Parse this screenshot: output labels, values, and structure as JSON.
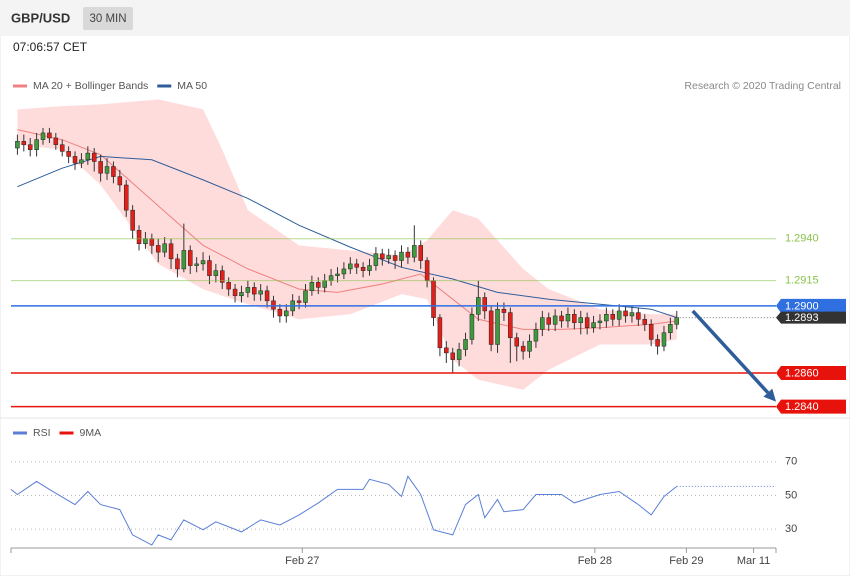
{
  "header": {
    "symbol": "GBP/USD",
    "interval": "30 MIN",
    "time": "07:06:57 CET",
    "source": "Research © 2020 Trading Central"
  },
  "chart_data": [
    {
      "type": "candlestick",
      "xlim": [
        -1,
        118.5
      ],
      "ylim": [
        1.2835,
        1.3025
      ],
      "up_color": "#3f9a3f",
      "down_color": "#e0201b",
      "x": [
        0,
        1,
        2,
        3,
        4,
        5,
        6,
        7,
        8,
        9,
        10,
        11,
        12,
        13,
        14,
        15,
        16,
        17,
        18,
        19,
        20,
        21,
        22,
        23,
        24,
        25,
        26,
        27,
        28,
        29,
        30,
        31,
        32,
        33,
        34,
        35,
        36,
        37,
        38,
        39,
        40,
        41,
        42,
        43,
        44,
        45,
        46,
        47,
        48,
        49,
        50,
        51,
        52,
        53,
        54,
        55,
        56,
        57,
        58,
        59,
        60,
        61,
        62,
        63,
        64,
        65,
        66,
        67,
        68,
        69,
        70,
        71,
        72,
        73,
        74,
        75,
        76,
        77,
        78,
        79,
        80,
        81,
        82,
        83,
        84,
        85,
        86,
        87,
        88,
        89,
        90,
        91,
        92,
        93,
        94,
        95,
        96,
        97,
        98,
        99,
        100,
        101,
        102,
        103
      ],
      "open": [
        1.2994,
        1.2998,
        1.2996,
        1.2993,
        1.2999,
        1.3003,
        1.3,
        1.2996,
        1.2992,
        1.2989,
        1.2985,
        1.2987,
        1.2991,
        1.2986,
        1.2979,
        1.2983,
        1.2977,
        1.2972,
        1.2957,
        1.2945,
        1.2937,
        1.294,
        1.2936,
        1.2932,
        1.2937,
        1.2928,
        1.2922,
        1.2933,
        1.2924,
        1.2925,
        1.2927,
        1.2918,
        1.2921,
        1.2914,
        1.291,
        1.2906,
        1.2908,
        1.2911,
        1.2907,
        1.2909,
        1.2903,
        1.2898,
        1.2894,
        1.2897,
        1.2903,
        1.2902,
        1.2909,
        1.2914,
        1.2911,
        1.2915,
        1.2918,
        1.2919,
        1.2922,
        1.2925,
        1.2923,
        1.2921,
        1.2924,
        1.2931,
        1.2928,
        1.293,
        1.2927,
        1.2932,
        1.2929,
        1.2936,
        1.2927,
        1.2915,
        1.2893,
        1.2875,
        1.2872,
        1.2868,
        1.2874,
        1.288,
        1.2895,
        1.2905,
        1.2897,
        1.2877,
        1.2898,
        1.2896,
        1.2881,
        1.2876,
        1.2873,
        1.2879,
        1.2886,
        1.2893,
        1.2889,
        1.2894,
        1.2891,
        1.2895,
        1.289,
        1.2893,
        1.2887,
        1.289,
        1.2891,
        1.2895,
        1.2892,
        1.2897,
        1.2894,
        1.2896,
        1.2892,
        1.2889,
        1.288,
        1.2876,
        1.2884,
        1.2889
      ],
      "high": [
        1.3002,
        1.3002,
        1.3,
        1.3003,
        1.3006,
        1.3006,
        1.3003,
        1.2999,
        1.2995,
        1.2992,
        1.2991,
        1.2995,
        1.2994,
        1.299,
        1.2988,
        1.2986,
        1.2981,
        1.2975,
        1.296,
        1.2948,
        1.2944,
        1.2943,
        1.294,
        1.2941,
        1.294,
        1.2931,
        1.2949,
        1.2936,
        1.2929,
        1.2932,
        1.293,
        1.2925,
        1.2924,
        1.2917,
        1.2913,
        1.2912,
        1.2915,
        1.2914,
        1.2913,
        1.2912,
        1.2906,
        1.2901,
        1.2901,
        1.2907,
        1.2906,
        1.2913,
        1.2918,
        1.2917,
        1.2919,
        1.2922,
        1.2923,
        1.2926,
        1.2929,
        1.2928,
        1.2926,
        1.2928,
        1.2935,
        1.2934,
        1.2934,
        1.2933,
        1.2936,
        1.2935,
        1.2948,
        1.2939,
        1.2929,
        1.2917,
        1.2895,
        1.2879,
        1.2875,
        1.2878,
        1.2884,
        1.2899,
        1.2915,
        1.2908,
        1.29,
        1.2902,
        1.2902,
        1.2899,
        1.2884,
        1.2879,
        1.2883,
        1.289,
        1.2897,
        1.2896,
        1.2898,
        1.2897,
        1.2899,
        1.2898,
        1.2897,
        1.2896,
        1.2894,
        1.2895,
        1.2899,
        1.2898,
        1.2901,
        1.29,
        1.29,
        1.2899,
        1.2895,
        1.2892,
        1.2883,
        1.2888,
        1.2893,
        1.2897
      ],
      "low": [
        1.299,
        1.2992,
        1.2989,
        1.2989,
        1.2996,
        1.2997,
        1.2993,
        1.2989,
        1.2985,
        1.2981,
        1.2982,
        1.2984,
        1.298,
        1.2974,
        1.2975,
        1.2973,
        1.2968,
        1.2953,
        1.294,
        1.2933,
        1.2934,
        1.2931,
        1.2926,
        1.2929,
        1.2922,
        1.2917,
        1.292,
        1.2919,
        1.292,
        1.2921,
        1.2913,
        1.2914,
        1.291,
        1.2906,
        1.2902,
        1.2902,
        1.2905,
        1.2903,
        1.2903,
        1.2899,
        1.2893,
        1.289,
        1.289,
        1.2894,
        1.2898,
        1.2899,
        1.2906,
        1.2907,
        1.2908,
        1.2912,
        1.2914,
        1.2916,
        1.2919,
        1.2919,
        1.2917,
        1.2918,
        1.2921,
        1.2924,
        1.2925,
        1.2922,
        1.2923,
        1.2925,
        1.2926,
        1.2922,
        1.2911,
        1.2888,
        1.287,
        1.2866,
        1.286,
        1.2864,
        1.287,
        1.2877,
        1.2891,
        1.2892,
        1.2873,
        1.2872,
        1.2891,
        1.2866,
        1.2867,
        1.2868,
        1.2869,
        1.2875,
        1.2882,
        1.2885,
        1.2885,
        1.2887,
        1.2887,
        1.2886,
        1.2883,
        1.2883,
        1.2884,
        1.2886,
        1.2887,
        1.2888,
        1.2888,
        1.289,
        1.289,
        1.2888,
        1.2885,
        1.2876,
        1.2871,
        1.2873,
        1.288,
        1.2886
      ],
      "close": [
        1.2998,
        1.2996,
        1.2993,
        1.2999,
        1.3003,
        1.3,
        1.2996,
        1.2992,
        1.2989,
        1.2985,
        1.2987,
        1.2991,
        1.2986,
        1.2979,
        1.2983,
        1.2977,
        1.2972,
        1.2957,
        1.2945,
        1.2937,
        1.294,
        1.2936,
        1.2932,
        1.2937,
        1.2928,
        1.2922,
        1.2933,
        1.2924,
        1.2925,
        1.2927,
        1.2918,
        1.2921,
        1.2914,
        1.291,
        1.2906,
        1.2908,
        1.2911,
        1.2907,
        1.2909,
        1.2903,
        1.2898,
        1.2894,
        1.2897,
        1.2903,
        1.2902,
        1.2909,
        1.2914,
        1.2911,
        1.2915,
        1.2918,
        1.2919,
        1.2922,
        1.2925,
        1.2923,
        1.2921,
        1.2924,
        1.2931,
        1.2928,
        1.293,
        1.2927,
        1.2932,
        1.2929,
        1.2936,
        1.2927,
        1.2915,
        1.2893,
        1.2875,
        1.2872,
        1.2868,
        1.2874,
        1.288,
        1.2895,
        1.2905,
        1.2897,
        1.2877,
        1.2898,
        1.2896,
        1.2881,
        1.2876,
        1.2873,
        1.2879,
        1.2886,
        1.2893,
        1.2889,
        1.2894,
        1.2891,
        1.2895,
        1.289,
        1.2893,
        1.2887,
        1.289,
        1.2891,
        1.2895,
        1.2892,
        1.2897,
        1.2894,
        1.2896,
        1.2892,
        1.2889,
        1.288,
        1.2876,
        1.2884,
        1.2889,
        1.2893
      ],
      "series": [
        {
          "name": "MA 20 + Bollinger Bands",
          "color": "#f08080",
          "x": [
            0,
            7,
            13,
            21,
            29,
            36,
            44,
            50,
            57,
            63,
            68,
            72,
            79,
            85,
            91,
            99,
            103
          ],
          "values": [
            1.3005,
            1.2999,
            1.299,
            1.2963,
            1.2936,
            1.2922,
            1.291,
            1.2908,
            1.2913,
            1.2919,
            1.2904,
            1.2892,
            1.2886,
            1.2886,
            1.2887,
            1.2889,
            1.2891
          ]
        },
        {
          "name": "MA 50",
          "color": "#2e5d9a",
          "x": [
            0,
            7,
            13,
            21,
            29,
            36,
            44,
            52,
            60,
            68,
            75,
            83,
            91,
            99,
            103
          ],
          "values": [
            1.2971,
            1.2982,
            1.2989,
            1.2987,
            1.2975,
            1.2964,
            1.2948,
            1.2935,
            1.2923,
            1.2916,
            1.2908,
            1.2904,
            1.2901,
            1.2898,
            1.2893
          ]
        }
      ],
      "bands": {
        "color": "#ffdcdc",
        "x": [
          0,
          7,
          13,
          22,
          29,
          32,
          36,
          44,
          52,
          60,
          64,
          68,
          72,
          79,
          83,
          91,
          99,
          103
        ],
        "upper": [
          1.3017,
          1.3019,
          1.302,
          1.3023,
          1.3017,
          1.2993,
          1.2957,
          1.2936,
          1.2933,
          1.293,
          1.2939,
          1.2957,
          1.2952,
          1.2922,
          1.291,
          1.2898,
          1.2895,
          1.2895
        ],
        "lower": [
          1.2996,
          1.2993,
          1.2972,
          1.2925,
          1.291,
          1.2906,
          1.2901,
          1.2892,
          1.2895,
          1.2907,
          1.2904,
          1.2868,
          1.2856,
          1.285,
          1.2862,
          1.2877,
          1.2877,
          1.288
        ]
      },
      "levels": [
        {
          "value": 1.294,
          "label": "1.2940",
          "color": "#8bc34a",
          "box": false
        },
        {
          "value": 1.2915,
          "label": "1.2915",
          "color": "#8bc34a",
          "box": false
        },
        {
          "value": 1.29,
          "label": "1.2900",
          "color": "#2f6fe0",
          "box": true
        },
        {
          "value": 1.286,
          "label": "1.2860",
          "color": "#e8120c",
          "box": true
        },
        {
          "value": 1.284,
          "label": "1.2840",
          "color": "#e8120c",
          "box": true
        }
      ],
      "current": {
        "value": 1.2893,
        "label": "1.2893",
        "color": "#333333"
      },
      "forecast": {
        "color": "#2e5d9a",
        "x": [
          105.5,
          118.5
        ],
        "values": [
          1.2897,
          1.2843
        ]
      }
    },
    {
      "type": "line",
      "xlim": [
        -1,
        118.5
      ],
      "ylim": [
        20,
        80
      ],
      "yticks": [
        30,
        50,
        70
      ],
      "grid": true,
      "xticks": [
        {
          "value": 44.5,
          "label": "Feb 27"
        },
        {
          "value": 90.2,
          "label": "Feb 28"
        },
        {
          "value": 104.5,
          "label": "Feb 29"
        },
        {
          "value": 115,
          "label": "Mar 11"
        }
      ],
      "series": [
        {
          "name": "RSI",
          "color": "#5b7fd6",
          "x": [
            -1,
            0,
            3,
            5,
            9,
            11,
            13,
            16,
            18,
            21,
            22,
            24,
            26,
            29,
            31,
            35,
            38,
            41,
            44,
            47,
            50,
            54,
            55,
            58,
            60,
            61,
            63,
            65,
            68,
            70,
            72,
            73,
            75,
            76,
            79,
            81,
            85,
            87,
            91,
            94,
            97,
            99,
            101,
            103
          ],
          "values": [
            53.6,
            50.6,
            58.4,
            53.6,
            44.6,
            52.4,
            44.6,
            41.6,
            26.6,
            20.6,
            26.6,
            23.6,
            35.5,
            29.6,
            34.4,
            28.4,
            35.5,
            32.5,
            38.5,
            45.6,
            53.6,
            53.6,
            59.6,
            56.6,
            49.4,
            61.4,
            50.6,
            29.6,
            26.6,
            44.6,
            50.6,
            36.8,
            47.6,
            40.4,
            41.6,
            50.6,
            50.6,
            45.6,
            50.6,
            52.4,
            44.6,
            38.5,
            49.4,
            55.4
          ]
        },
        {
          "name": "9MA",
          "color": "#e8120c"
        }
      ]
    }
  ]
}
